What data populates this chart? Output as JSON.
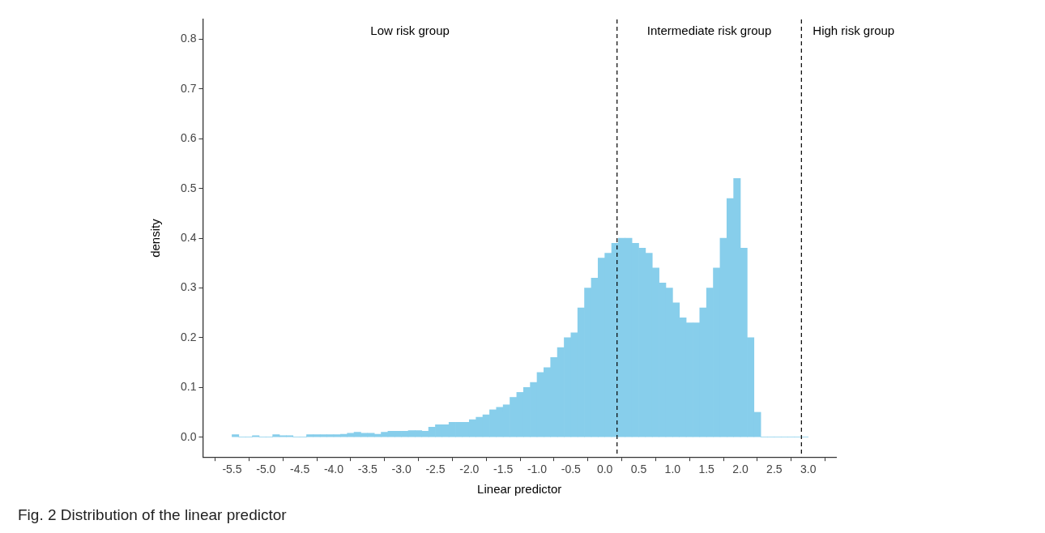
{
  "chart_data": {
    "type": "histogram",
    "title": "Fig. 2 Distribution of the linear predictor",
    "xlabel": "Linear predictor",
    "ylabel": "density",
    "annotations": [
      "Low risk group",
      "Intermediate risk group",
      "High risk group"
    ],
    "bins": [
      -5.5,
      -5.4,
      -5.3,
      -5.2,
      -5.1,
      -5.0,
      -4.9,
      -4.8,
      -4.7,
      -4.6,
      -4.5,
      -4.4,
      -4.3,
      -4.2,
      -4.1,
      -4.0,
      -3.9,
      -3.8,
      -3.7,
      -3.6,
      -3.5,
      -3.4,
      -3.3,
      -3.2,
      -3.1,
      -3.0,
      -2.9,
      -2.8,
      -2.7,
      -2.6,
      -2.5,
      -2.4,
      -2.3,
      -2.2,
      -2.1,
      -2.0,
      -1.9,
      -1.8,
      -1.7,
      -1.6,
      -1.5,
      -1.4,
      -1.3,
      -1.2,
      -1.1,
      -1.0,
      -0.9,
      -0.8,
      -0.7,
      -0.6,
      -0.5,
      -0.4,
      -0.3,
      -0.2,
      -0.1,
      0.0,
      0.1,
      0.2,
      0.3,
      0.4,
      0.5,
      0.6,
      0.7,
      0.8,
      0.9,
      1.0,
      1.1,
      1.2,
      1.3,
      1.4,
      1.5,
      1.6,
      1.7,
      1.8,
      1.9,
      2.0,
      2.1,
      2.2,
      2.3,
      2.4,
      2.5,
      2.6,
      2.7,
      2.8,
      2.9,
      3.0
    ],
    "values": [
      0.005,
      0,
      0,
      0.003,
      0,
      0,
      0.005,
      0.003,
      0.003,
      0,
      0,
      0.005,
      0.005,
      0.005,
      0.005,
      0.005,
      0.006,
      0.008,
      0.01,
      0.008,
      0.008,
      0.006,
      0.01,
      0.012,
      0.012,
      0.012,
      0.013,
      0.013,
      0.012,
      0.02,
      0.025,
      0.025,
      0.03,
      0.03,
      0.03,
      0.035,
      0.04,
      0.045,
      0.055,
      0.06,
      0.065,
      0.08,
      0.09,
      0.1,
      0.11,
      0.13,
      0.14,
      0.16,
      0.18,
      0.2,
      0.21,
      0.26,
      0.3,
      0.32,
      0.36,
      0.37,
      0.39,
      0.4,
      0.4,
      0.39,
      0.38,
      0.37,
      0.34,
      0.31,
      0.3,
      0.27,
      0.24,
      0.23,
      0.23,
      0.26,
      0.3,
      0.34,
      0.4,
      0.48,
      0.52,
      0.38,
      0.2,
      0.05,
      0,
      0,
      0,
      0,
      0,
      0,
      0
    ],
    "color": "#87ceeb",
    "xlim": [
      -5.93,
      3.41
    ],
    "ylim": [
      -0.04,
      0.84
    ],
    "xticks": [
      -5.5,
      {
        "value": -5,
        "label": "-5.0"
      },
      -4.5,
      {
        "value": -4,
        "label": "-4.0"
      },
      -3.5,
      {
        "value": -3,
        "label": "-3.0"
      },
      -2.5,
      {
        "value": -2,
        "label": "-2.0"
      },
      -1.5,
      {
        "value": -1,
        "label": "-1.0"
      },
      -0.5,
      {
        "value": 0,
        "label": "0.0"
      },
      0.5,
      {
        "value": 1,
        "label": "1.0"
      },
      1.5,
      {
        "value": 2,
        "label": "2.0"
      },
      2.5,
      {
        "value": 3,
        "label": "3.0"
      }
    ],
    "yticks": [
      {
        "value": 0,
        "label": "0.0"
      },
      0.1,
      0.2,
      0.3,
      0.4,
      0.5,
      0.6,
      0.7,
      0.8
    ],
    "ref_lines": [
      {
        "axis": "x",
        "value": 0.18,
        "label": null,
        "color": "#000000",
        "line_style": "dashed"
      },
      {
        "axis": "x",
        "value": 2.9,
        "label": null,
        "color": "#000000",
        "line_style": "dashed"
      }
    ],
    "grid": false,
    "legend": false
  }
}
